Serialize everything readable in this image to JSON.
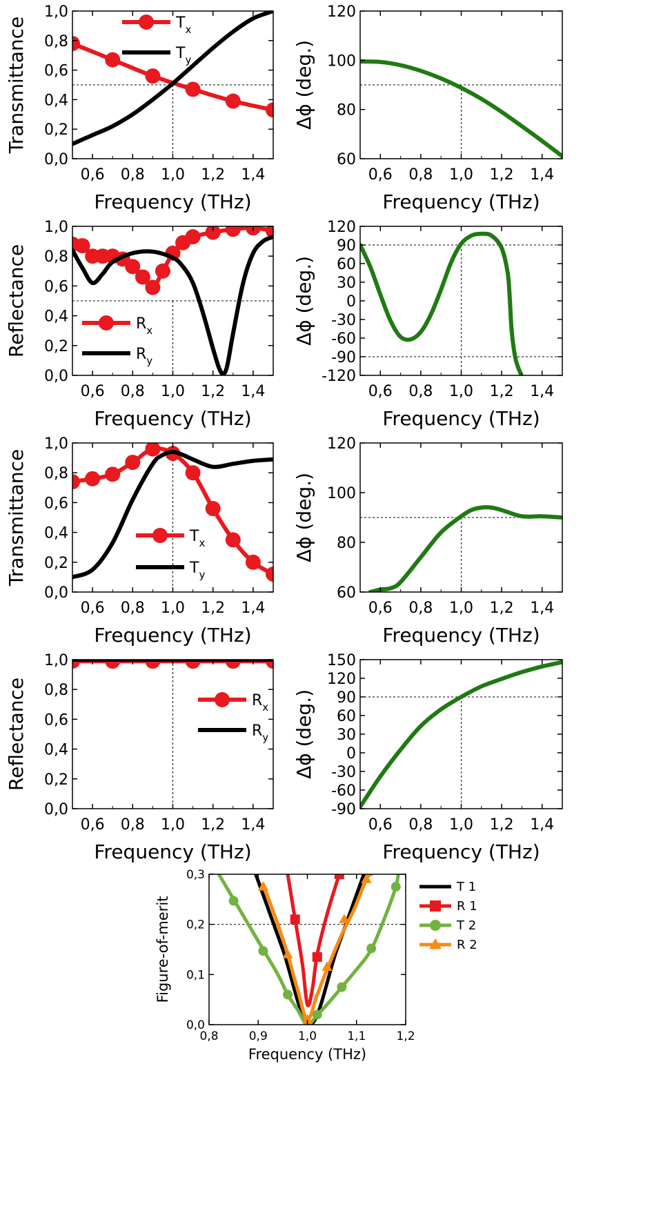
{
  "colors": {
    "red": "#e8191f",
    "black": "#000000",
    "green": "#1f7a12",
    "lightgreen": "#72b23f",
    "orange": "#f98a12"
  },
  "chart_data": [
    {
      "id": "p1",
      "type": "line",
      "xlabel": "Frequency (THz)",
      "ylabel": "Transmittance",
      "xlim": [
        0.5,
        1.5
      ],
      "ylim": [
        0,
        1
      ],
      "xticks": [
        "0,6",
        "0,8",
        "1,0",
        "1,2",
        "1,4"
      ],
      "yticks": [
        "0,0",
        "0,2",
        "0,4",
        "0,6",
        "0,8",
        "1,0"
      ],
      "ref_x": 1.0,
      "ref_y": 0.5,
      "series": [
        {
          "name": "T",
          "sub": "x",
          "color": "red",
          "marker": "circle",
          "x": [
            0.5,
            0.7,
            0.9,
            1.1,
            1.3,
            1.5
          ],
          "y": [
            0.78,
            0.67,
            0.56,
            0.47,
            0.39,
            0.33
          ]
        },
        {
          "name": "T",
          "sub": "y",
          "color": "black",
          "x": [
            0.5,
            0.6,
            0.7,
            0.8,
            0.9,
            1.0,
            1.1,
            1.2,
            1.3,
            1.4,
            1.5
          ],
          "y": [
            0.1,
            0.16,
            0.22,
            0.3,
            0.4,
            0.51,
            0.63,
            0.75,
            0.86,
            0.95,
            1.0
          ]
        }
      ],
      "legend": "top-left"
    },
    {
      "id": "p2",
      "type": "line",
      "xlabel": "Frequency (THz)",
      "ylabel": "Δϕ (deg.)",
      "xlim": [
        0.5,
        1.5
      ],
      "ylim": [
        60,
        120
      ],
      "xticks": [
        "0,6",
        "0,8",
        "1,0",
        "1,2",
        "1,4"
      ],
      "yticks": [
        "60",
        "80",
        "100",
        "120"
      ],
      "ref_x": 1.0,
      "ref_y": 90,
      "series": [
        {
          "name": "Δϕ",
          "color": "green",
          "x": [
            0.5,
            0.6,
            0.7,
            0.8,
            0.9,
            1.0,
            1.1,
            1.2,
            1.3,
            1.4,
            1.5
          ],
          "y": [
            99.5,
            99.3,
            98.0,
            95.7,
            92.6,
            88.8,
            84.3,
            79.0,
            73.2,
            67.2,
            61.0
          ]
        }
      ]
    },
    {
      "id": "p3",
      "type": "line",
      "xlabel": "Frequency (THz)",
      "ylabel": "Reflectance",
      "xlim": [
        0.5,
        1.5
      ],
      "ylim": [
        0,
        1
      ],
      "xticks": [
        "0,6",
        "0,8",
        "1,0",
        "1,2",
        "1,4"
      ],
      "yticks": [
        "0,0",
        "0,2",
        "0,4",
        "0,6",
        "0,8",
        "1,0"
      ],
      "ref_x": 1.0,
      "ref_y": 0.5,
      "series": [
        {
          "name": "R",
          "sub": "x",
          "color": "red",
          "marker": "circle",
          "x": [
            0.5,
            0.55,
            0.6,
            0.65,
            0.7,
            0.75,
            0.8,
            0.85,
            0.9,
            0.95,
            1.0,
            1.05,
            1.1,
            1.2,
            1.3,
            1.4,
            1.5
          ],
          "y": [
            0.88,
            0.87,
            0.8,
            0.8,
            0.8,
            0.78,
            0.73,
            0.66,
            0.59,
            0.7,
            0.82,
            0.89,
            0.93,
            0.96,
            0.98,
            0.99,
            0.97
          ]
        },
        {
          "name": "R",
          "sub": "y",
          "color": "black",
          "x": [
            0.5,
            0.55,
            0.6,
            0.65,
            0.7,
            0.8,
            0.9,
            1.0,
            1.05,
            1.1,
            1.15,
            1.2,
            1.23,
            1.25,
            1.27,
            1.3,
            1.35,
            1.4,
            1.45,
            1.5
          ],
          "y": [
            0.84,
            0.72,
            0.62,
            0.68,
            0.76,
            0.82,
            0.83,
            0.79,
            0.73,
            0.62,
            0.42,
            0.18,
            0.05,
            0.01,
            0.06,
            0.28,
            0.62,
            0.82,
            0.9,
            0.93
          ]
        }
      ],
      "legend": "bottom-left"
    },
    {
      "id": "p4",
      "type": "line",
      "xlabel": "Frequency (THz)",
      "ylabel": "Δϕ (deg.)",
      "xlim": [
        0.5,
        1.5
      ],
      "ylim": [
        -120,
        120
      ],
      "xticks": [
        "0,6",
        "0,8",
        "1,0",
        "1,2",
        "1,4"
      ],
      "yticks": [
        "-120",
        "-90",
        "-60",
        "-30",
        "0",
        "30",
        "60",
        "90",
        "120"
      ],
      "ref_x": 1.0,
      "ref_y": 90,
      "ref_y2": -90,
      "series": [
        {
          "name": "Δϕ",
          "color": "green",
          "x": [
            0.5,
            0.55,
            0.6,
            0.65,
            0.7,
            0.75,
            0.8,
            0.85,
            0.9,
            0.95,
            1.0,
            1.05,
            1.1,
            1.15,
            1.2,
            1.23,
            1.24,
            1.25,
            1.27,
            1.3
          ],
          "y": [
            90,
            55,
            10,
            -32,
            -58,
            -62,
            -50,
            -22,
            18,
            62,
            92,
            105,
            108,
            105,
            85,
            45,
            5,
            -50,
            -95,
            -122
          ]
        }
      ]
    },
    {
      "id": "p5",
      "type": "line",
      "xlabel": "Frequency (THz)",
      "ylabel": "Transmittance",
      "xlim": [
        0.5,
        1.5
      ],
      "ylim": [
        0,
        1
      ],
      "xticks": [
        "0,6",
        "0,8",
        "1,0",
        "1,2",
        "1,4"
      ],
      "yticks": [
        "0,0",
        "0,2",
        "0,4",
        "0,6",
        "0,8",
        "1,0"
      ],
      "ref_x": 1.0,
      "ref_y": null,
      "series": [
        {
          "name": "T",
          "sub": "x",
          "color": "red",
          "marker": "circle",
          "x": [
            0.5,
            0.6,
            0.7,
            0.8,
            0.9,
            1.0,
            1.1,
            1.2,
            1.3,
            1.4,
            1.5
          ],
          "y": [
            0.74,
            0.76,
            0.79,
            0.87,
            0.96,
            0.93,
            0.8,
            0.56,
            0.35,
            0.2,
            0.12
          ]
        },
        {
          "name": "T",
          "sub": "y",
          "color": "black",
          "x": [
            0.5,
            0.6,
            0.7,
            0.8,
            0.9,
            0.95,
            1.0,
            1.05,
            1.1,
            1.2,
            1.3,
            1.4,
            1.5
          ],
          "y": [
            0.1,
            0.15,
            0.33,
            0.62,
            0.86,
            0.92,
            0.94,
            0.92,
            0.89,
            0.84,
            0.86,
            0.88,
            0.89
          ]
        }
      ],
      "legend": "bottom-center"
    },
    {
      "id": "p6",
      "type": "line",
      "xlabel": "Frequency (THz)",
      "ylabel": "Δϕ (deg.)",
      "xlim": [
        0.5,
        1.5
      ],
      "ylim": [
        60,
        120
      ],
      "xticks": [
        "0,6",
        "0,8",
        "1,0",
        "1,2",
        "1,4"
      ],
      "yticks": [
        "60",
        "80",
        "100",
        "120"
      ],
      "ref_x": 1.0,
      "ref_y": 90,
      "series": [
        {
          "name": "Δϕ",
          "color": "green",
          "x": [
            0.55,
            0.6,
            0.65,
            0.7,
            0.8,
            0.9,
            1.0,
            1.05,
            1.1,
            1.15,
            1.2,
            1.3,
            1.4,
            1.5
          ],
          "y": [
            60,
            61,
            61.5,
            64,
            74,
            84,
            90.5,
            93,
            94,
            94,
            93,
            90.5,
            90.5,
            90
          ]
        }
      ]
    },
    {
      "id": "p7",
      "type": "line",
      "xlabel": "Frequency (THz)",
      "ylabel": "Reflectance",
      "xlim": [
        0.5,
        1.5
      ],
      "ylim": [
        0,
        1
      ],
      "xticks": [
        "0,6",
        "0,8",
        "1,0",
        "1,2",
        "1,4"
      ],
      "yticks": [
        "0,0",
        "0,2",
        "0,4",
        "0,6",
        "0,8",
        "1,0"
      ],
      "ref_x": 1.0,
      "ref_y": null,
      "series": [
        {
          "name": "R",
          "sub": "x",
          "color": "red",
          "marker": "circle",
          "x": [
            0.5,
            0.7,
            0.9,
            1.1,
            1.3,
            1.5
          ],
          "y": [
            0.99,
            0.99,
            0.99,
            0.99,
            0.99,
            0.99
          ]
        },
        {
          "name": "R",
          "sub": "y",
          "color": "black",
          "x": [
            0.5,
            1.5
          ],
          "y": [
            1.0,
            1.0
          ]
        }
      ],
      "legend": "top-right"
    },
    {
      "id": "p8",
      "type": "line",
      "xlabel": "Frequency (THz)",
      "ylabel": "Δϕ (deg.)",
      "xlim": [
        0.5,
        1.5
      ],
      "ylim": [
        -90,
        150
      ],
      "xticks": [
        "0,6",
        "0,8",
        "1,0",
        "1,2",
        "1,4"
      ],
      "yticks": [
        "-90",
        "-60",
        "-30",
        "0",
        "30",
        "60",
        "90",
        "120",
        "150"
      ],
      "ref_x": 1.0,
      "ref_y": 90,
      "series": [
        {
          "name": "Δϕ",
          "color": "green",
          "x": [
            0.5,
            0.6,
            0.7,
            0.8,
            0.9,
            1.0,
            1.1,
            1.2,
            1.3,
            1.4,
            1.5
          ],
          "y": [
            -87,
            -38,
            5,
            43,
            70,
            90,
            107,
            119,
            130,
            139,
            146
          ]
        }
      ]
    },
    {
      "id": "p9",
      "type": "line",
      "xlabel": "Frequency (THz)",
      "ylabel": "Figure-of-merit",
      "xlim": [
        0.8,
        1.2
      ],
      "ylim": [
        0,
        0.3
      ],
      "xticks": [
        "0,8",
        "0,9",
        "1,0",
        "1,1",
        "1,2"
      ],
      "yticks": [
        "0,0",
        "0,1",
        "0,2",
        "0,3"
      ],
      "ref_x": null,
      "ref_y": 0.2,
      "series": [
        {
          "name": "T 1",
          "color": "black",
          "x": [
            0.895,
            0.95,
            1.005,
            1.06,
            1.115
          ],
          "y": [
            0.3,
            0.15,
            0.0,
            0.15,
            0.3
          ]
        },
        {
          "name": "R 1",
          "color": "red",
          "marker": "square",
          "x": [
            0.96,
            0.975,
            0.99,
            1.0,
            1.01,
            1.02,
            1.04,
            1.065
          ],
          "y": [
            0.3,
            0.21,
            0.12,
            0.04,
            0.07,
            0.14,
            0.22,
            0.3
          ],
          "mx": [
            0.975,
            1.02,
            1.065
          ],
          "my": [
            0.21,
            0.135,
            0.3
          ]
        },
        {
          "name": "T 2",
          "color": "lightgreen",
          "marker": "circle",
          "x": [
            0.82,
            0.85,
            0.88,
            0.91,
            0.94,
            0.96,
            0.98,
            1.0,
            1.02,
            1.04,
            1.07,
            1.1,
            1.13,
            1.16,
            1.18,
            1.185
          ],
          "y": [
            0.3,
            0.25,
            0.2,
            0.15,
            0.1,
            0.06,
            0.03,
            0.0,
            0.02,
            0.04,
            0.075,
            0.11,
            0.15,
            0.22,
            0.275,
            0.3
          ],
          "mx": [
            0.85,
            0.91,
            0.96,
            1.02,
            1.07,
            1.13,
            1.18
          ],
          "my": [
            0.247,
            0.147,
            0.06,
            0.02,
            0.075,
            0.152,
            0.275
          ]
        },
        {
          "name": "R 2",
          "color": "orange",
          "marker": "triangle",
          "x": [
            0.91,
            0.94,
            0.96,
            0.98,
            1.0,
            1.02,
            1.04,
            1.07,
            1.095,
            1.12,
            1.13
          ],
          "y": [
            0.28,
            0.2,
            0.14,
            0.07,
            0.01,
            0.06,
            0.11,
            0.18,
            0.23,
            0.29,
            0.3
          ],
          "mx": [
            0.91,
            0.96,
            1.0,
            1.04,
            1.075,
            1.12
          ],
          "my": [
            0.275,
            0.14,
            0.01,
            0.115,
            0.21,
            0.29
          ]
        }
      ],
      "legend": "right-outside"
    }
  ]
}
